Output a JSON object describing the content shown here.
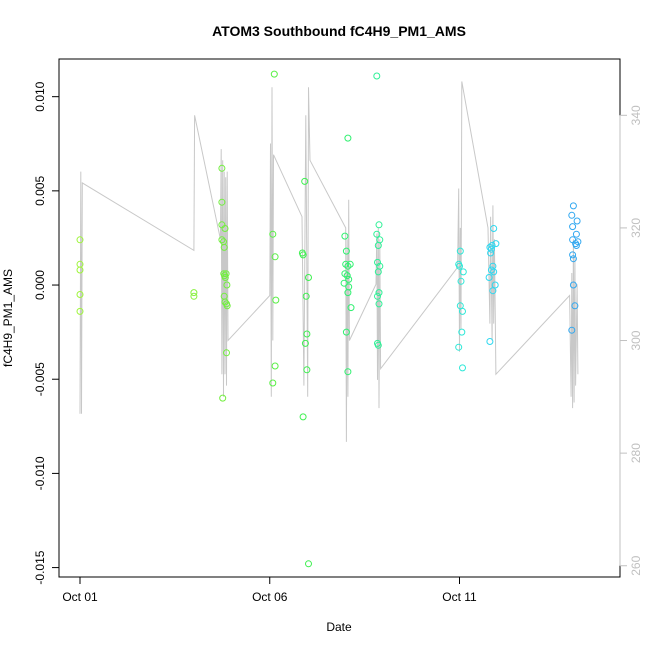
{
  "chart_data": {
    "type": "scatter",
    "title": "ATOM3 Southbound fC4H9_PM1_AMS",
    "xlabel": "Date",
    "ylabel": "fC4H9_PM1_AMS",
    "x_domain_days": [
      0,
      13
    ],
    "x_ticks": [
      {
        "day": 0,
        "label": "Oct 01"
      },
      {
        "day": 5,
        "label": "Oct 06"
      },
      {
        "day": 10,
        "label": "Oct 11"
      }
    ],
    "ylim": [
      -0.0155,
      0.012
    ],
    "y_ticks": [
      {
        "value": 0.01,
        "label": "0.010"
      },
      {
        "value": 0.005,
        "label": "0.005"
      },
      {
        "value": 0,
        "label": "0.000"
      },
      {
        "value": -0.005,
        "label": "-0.005"
      },
      {
        "value": -0.01,
        "label": "-0.010"
      },
      {
        "value": -0.015,
        "label": "-0.015"
      }
    ],
    "y2lim": [
      258,
      350
    ],
    "y2_ticks": [
      {
        "value": 260,
        "label": "260"
      },
      {
        "value": 280,
        "label": "280"
      },
      {
        "value": 300,
        "label": "300"
      },
      {
        "value": 320,
        "label": "320"
      },
      {
        "value": 340,
        "label": "340"
      }
    ],
    "grid": false,
    "colors": {
      "trace_line": "#c8c8c8",
      "axis": "#000000",
      "right_axis": "#c0c0c0"
    },
    "points": [
      {
        "x": 0.0,
        "y": 0.0024,
        "color": "#9ef53a"
      },
      {
        "x": 0.0,
        "y": 0.0011,
        "color": "#9ef53a"
      },
      {
        "x": 0.0,
        "y": 0.0008,
        "color": "#9ef53a"
      },
      {
        "x": 0.0,
        "y": -0.0005,
        "color": "#9ef53a"
      },
      {
        "x": 0.0,
        "y": -0.0014,
        "color": "#9ef53a"
      },
      {
        "x": 3.0,
        "y": -0.0004,
        "color": "#86f03c"
      },
      {
        "x": 3.0,
        "y": -0.0006,
        "color": "#86f03c"
      },
      {
        "x": 3.74,
        "y": 0.0062,
        "color": "#72ef3e"
      },
      {
        "x": 3.74,
        "y": 0.0044,
        "color": "#72ef3e"
      },
      {
        "x": 3.74,
        "y": 0.0032,
        "color": "#72ef3e"
      },
      {
        "x": 3.74,
        "y": 0.0024,
        "color": "#72ef3e"
      },
      {
        "x": 3.78,
        "y": 0.0023,
        "color": "#72ef3e"
      },
      {
        "x": 3.8,
        "y": 0.002,
        "color": "#72ef3e"
      },
      {
        "x": 3.82,
        "y": 0.003,
        "color": "#72ef3e"
      },
      {
        "x": 3.79,
        "y": 0.0006,
        "color": "#72ef3e"
      },
      {
        "x": 3.81,
        "y": 0.0005,
        "color": "#72ef3e"
      },
      {
        "x": 3.83,
        "y": 0.0004,
        "color": "#72ef3e"
      },
      {
        "x": 3.85,
        "y": 0.0006,
        "color": "#72ef3e"
      },
      {
        "x": 3.87,
        "y": 0.0,
        "color": "#72ef3e"
      },
      {
        "x": 3.8,
        "y": -0.0006,
        "color": "#72ef3e"
      },
      {
        "x": 3.82,
        "y": -0.0009,
        "color": "#72ef3e"
      },
      {
        "x": 3.86,
        "y": -0.001,
        "color": "#72ef3e"
      },
      {
        "x": 3.88,
        "y": -0.0011,
        "color": "#72ef3e"
      },
      {
        "x": 3.86,
        "y": -0.0036,
        "color": "#72ef3e"
      },
      {
        "x": 3.76,
        "y": -0.006,
        "color": "#72ef3e"
      },
      {
        "x": 5.12,
        "y": 0.0112,
        "color": "#58f044"
      },
      {
        "x": 5.08,
        "y": 0.0027,
        "color": "#58f044"
      },
      {
        "x": 5.14,
        "y": 0.0015,
        "color": "#58f044"
      },
      {
        "x": 5.16,
        "y": -0.0008,
        "color": "#58f044"
      },
      {
        "x": 5.14,
        "y": -0.0043,
        "color": "#58f044"
      },
      {
        "x": 5.08,
        "y": -0.0052,
        "color": "#58f044"
      },
      {
        "x": 5.92,
        "y": 0.0055,
        "color": "#3ef050"
      },
      {
        "x": 5.86,
        "y": 0.0017,
        "color": "#3ef050"
      },
      {
        "x": 5.88,
        "y": 0.0016,
        "color": "#3ef050"
      },
      {
        "x": 6.02,
        "y": 0.0004,
        "color": "#3ef050"
      },
      {
        "x": 5.96,
        "y": -0.0006,
        "color": "#3ef050"
      },
      {
        "x": 5.98,
        "y": -0.0026,
        "color": "#3ef050"
      },
      {
        "x": 5.94,
        "y": -0.0031,
        "color": "#3ef050"
      },
      {
        "x": 5.98,
        "y": -0.0045,
        "color": "#3ef050"
      },
      {
        "x": 5.88,
        "y": -0.007,
        "color": "#3ef050"
      },
      {
        "x": 6.02,
        "y": -0.0148,
        "color": "#3ef050"
      },
      {
        "x": 7.06,
        "y": 0.0078,
        "color": "#30f070"
      },
      {
        "x": 6.98,
        "y": 0.0026,
        "color": "#30f070"
      },
      {
        "x": 7.02,
        "y": 0.0018,
        "color": "#30f070"
      },
      {
        "x": 7.0,
        "y": 0.0011,
        "color": "#30f070"
      },
      {
        "x": 7.06,
        "y": 0.001,
        "color": "#30f070"
      },
      {
        "x": 7.12,
        "y": 0.0011,
        "color": "#30f070"
      },
      {
        "x": 6.98,
        "y": 0.0006,
        "color": "#30f070"
      },
      {
        "x": 7.04,
        "y": 0.0005,
        "color": "#30f070"
      },
      {
        "x": 7.08,
        "y": 0.0003,
        "color": "#30f070"
      },
      {
        "x": 6.96,
        "y": 0.0001,
        "color": "#30f070"
      },
      {
        "x": 7.08,
        "y": -0.0001,
        "color": "#30f070"
      },
      {
        "x": 7.06,
        "y": -0.0004,
        "color": "#30f070"
      },
      {
        "x": 7.14,
        "y": -0.0012,
        "color": "#30f070"
      },
      {
        "x": 7.02,
        "y": -0.0025,
        "color": "#30f070"
      },
      {
        "x": 7.06,
        "y": -0.0046,
        "color": "#30f070"
      },
      {
        "x": 7.82,
        "y": 0.0111,
        "color": "#2ef096"
      },
      {
        "x": 7.88,
        "y": 0.0032,
        "color": "#2ef096"
      },
      {
        "x": 7.82,
        "y": 0.0027,
        "color": "#2ef096"
      },
      {
        "x": 7.9,
        "y": 0.0024,
        "color": "#2ef096"
      },
      {
        "x": 7.86,
        "y": 0.0021,
        "color": "#2ef096"
      },
      {
        "x": 7.84,
        "y": 0.0012,
        "color": "#2ef096"
      },
      {
        "x": 7.9,
        "y": 0.001,
        "color": "#2ef096"
      },
      {
        "x": 7.86,
        "y": 0.0007,
        "color": "#2ef096"
      },
      {
        "x": 7.88,
        "y": -0.0004,
        "color": "#2ef096"
      },
      {
        "x": 7.84,
        "y": -0.0006,
        "color": "#2ef096"
      },
      {
        "x": 7.88,
        "y": -0.001,
        "color": "#2ef096"
      },
      {
        "x": 7.84,
        "y": -0.0031,
        "color": "#2ef096"
      },
      {
        "x": 7.86,
        "y": -0.0032,
        "color": "#2ef096"
      },
      {
        "x": 10.02,
        "y": 0.0018,
        "color": "#2ee8d8"
      },
      {
        "x": 9.98,
        "y": 0.0011,
        "color": "#2ee8d8"
      },
      {
        "x": 10.0,
        "y": 0.001,
        "color": "#2ee8d8"
      },
      {
        "x": 10.1,
        "y": 0.0007,
        "color": "#2ee8d8"
      },
      {
        "x": 10.04,
        "y": 0.0002,
        "color": "#2ee8d8"
      },
      {
        "x": 10.02,
        "y": -0.0011,
        "color": "#2ee8d8"
      },
      {
        "x": 10.08,
        "y": -0.0014,
        "color": "#2ee8d8"
      },
      {
        "x": 10.06,
        "y": -0.0025,
        "color": "#2ee8d8"
      },
      {
        "x": 9.98,
        "y": -0.0033,
        "color": "#2ee8d8"
      },
      {
        "x": 10.08,
        "y": -0.0044,
        "color": "#2ee8d8"
      },
      {
        "x": 10.9,
        "y": 0.003,
        "color": "#2ed8f0"
      },
      {
        "x": 10.96,
        "y": 0.0022,
        "color": "#2ed8f0"
      },
      {
        "x": 10.86,
        "y": 0.0021,
        "color": "#2ed8f0"
      },
      {
        "x": 10.8,
        "y": 0.002,
        "color": "#2ed8f0"
      },
      {
        "x": 10.84,
        "y": 0.0019,
        "color": "#2ed8f0"
      },
      {
        "x": 10.82,
        "y": 0.0017,
        "color": "#2ed8f0"
      },
      {
        "x": 10.88,
        "y": 0.001,
        "color": "#2ed8f0"
      },
      {
        "x": 10.84,
        "y": 0.0008,
        "color": "#2ed8f0"
      },
      {
        "x": 10.9,
        "y": 0.0007,
        "color": "#2ed8f0"
      },
      {
        "x": 10.78,
        "y": 0.0004,
        "color": "#2ed8f0"
      },
      {
        "x": 10.94,
        "y": 0.0,
        "color": "#2ed8f0"
      },
      {
        "x": 10.88,
        "y": -0.0003,
        "color": "#2ed8f0"
      },
      {
        "x": 10.8,
        "y": -0.003,
        "color": "#2ed8f0"
      },
      {
        "x": 13.0,
        "y": 0.0042,
        "color": "#32a8f0"
      },
      {
        "x": 12.96,
        "y": 0.0037,
        "color": "#32a8f0"
      },
      {
        "x": 13.1,
        "y": 0.0034,
        "color": "#32a8f0"
      },
      {
        "x": 12.98,
        "y": 0.0031,
        "color": "#32a8f0"
      },
      {
        "x": 13.08,
        "y": 0.0027,
        "color": "#32a8f0"
      },
      {
        "x": 12.98,
        "y": 0.0024,
        "color": "#32a8f0"
      },
      {
        "x": 13.12,
        "y": 0.0023,
        "color": "#32a8f0"
      },
      {
        "x": 13.06,
        "y": 0.0022,
        "color": "#32a8f0"
      },
      {
        "x": 13.08,
        "y": 0.0021,
        "color": "#32a8f0"
      },
      {
        "x": 12.98,
        "y": 0.0016,
        "color": "#32a8f0"
      },
      {
        "x": 13.0,
        "y": 0.0014,
        "color": "#32a8f0"
      },
      {
        "x": 13.0,
        "y": 0.0,
        "color": "#32a8f0"
      },
      {
        "x": 13.04,
        "y": -0.0011,
        "color": "#32a8f0"
      },
      {
        "x": 12.96,
        "y": -0.0024,
        "color": "#32a8f0"
      }
    ],
    "trace": [
      [
        0.0,
        287
      ],
      [
        0.02,
        330
      ],
      [
        0.04,
        287
      ],
      [
        0.06,
        328
      ],
      [
        3.0,
        316
      ],
      [
        3.02,
        340
      ],
      [
        3.7,
        318
      ],
      [
        3.72,
        334
      ],
      [
        3.74,
        294
      ],
      [
        3.76,
        332
      ],
      [
        3.78,
        290
      ],
      [
        3.8,
        330
      ],
      [
        3.82,
        294
      ],
      [
        3.84,
        329
      ],
      [
        3.86,
        292
      ],
      [
        3.88,
        330
      ],
      [
        3.9,
        300
      ],
      [
        5.0,
        308
      ],
      [
        5.02,
        335
      ],
      [
        5.04,
        290
      ],
      [
        5.06,
        345
      ],
      [
        5.08,
        300
      ],
      [
        5.1,
        333
      ],
      [
        5.85,
        322
      ],
      [
        5.9,
        292
      ],
      [
        5.95,
        340
      ],
      [
        6.0,
        290
      ],
      [
        6.02,
        345
      ],
      [
        6.06,
        332
      ],
      [
        7.0,
        320
      ],
      [
        7.02,
        282
      ],
      [
        7.04,
        318
      ],
      [
        7.06,
        290
      ],
      [
        7.08,
        325
      ],
      [
        7.1,
        300
      ],
      [
        7.8,
        310
      ],
      [
        7.82,
        319
      ],
      [
        7.84,
        293
      ],
      [
        7.86,
        320
      ],
      [
        7.88,
        288
      ],
      [
        7.9,
        318
      ],
      [
        7.92,
        295
      ],
      [
        9.95,
        313
      ],
      [
        9.98,
        327
      ],
      [
        10.0,
        298
      ],
      [
        10.02,
        320
      ],
      [
        10.04,
        302
      ],
      [
        10.06,
        346
      ],
      [
        10.75,
        320
      ],
      [
        10.8,
        303
      ],
      [
        10.82,
        322
      ],
      [
        10.86,
        300
      ],
      [
        10.88,
        324
      ],
      [
        10.9,
        303
      ],
      [
        10.92,
        318
      ],
      [
        10.96,
        294
      ],
      [
        12.9,
        308
      ],
      [
        12.94,
        290
      ],
      [
        12.96,
        312
      ],
      [
        12.98,
        288
      ],
      [
        13.0,
        318
      ],
      [
        13.02,
        289
      ],
      [
        13.04,
        315
      ],
      [
        13.06,
        292
      ],
      [
        13.1,
        310
      ],
      [
        13.12,
        294
      ]
    ]
  }
}
